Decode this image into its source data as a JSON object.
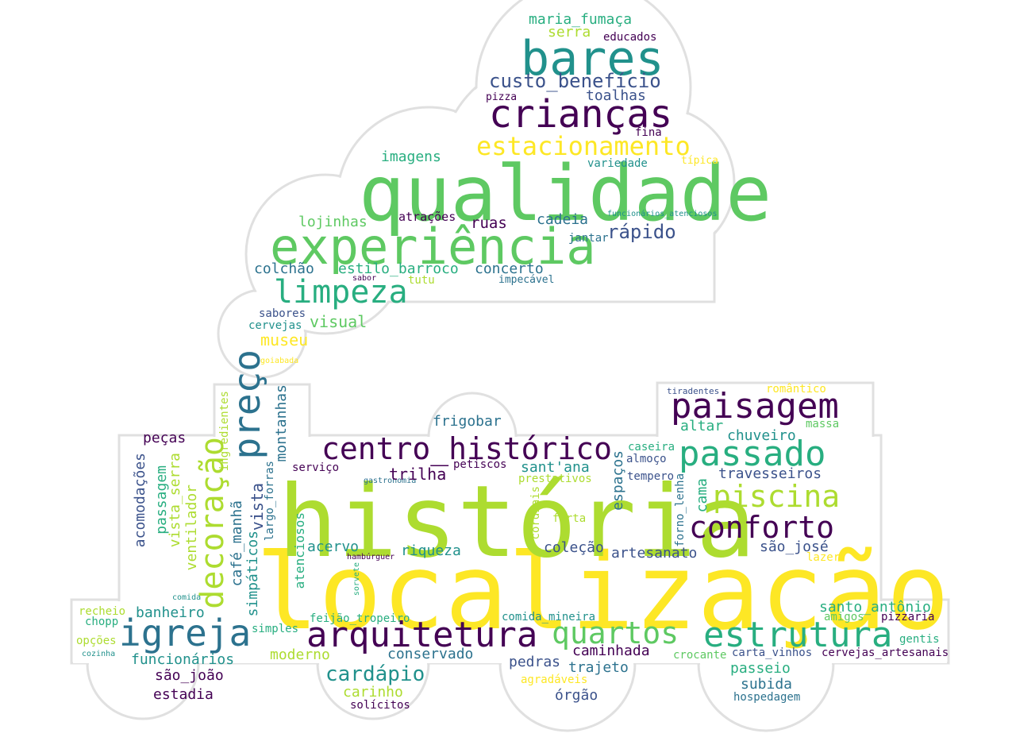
{
  "palette": {
    "c1": "#440154",
    "c2": "#3b528b",
    "c3": "#2c728e",
    "c4": "#21918c",
    "c5": "#28ae80",
    "c6": "#5ec962",
    "c7": "#addc30",
    "c8": "#fde725",
    "outline": "#e0e0e0"
  },
  "words": [
    "localização",
    "história",
    "qualidade",
    "bares",
    "experiência",
    "arquitetura",
    "igreja",
    "estrutura",
    "crianças",
    "paisagem",
    "passado",
    "centro_histórico",
    "preço",
    "decoração",
    "limpeza",
    "piscina",
    "conforto",
    "quartos",
    "estacionamento",
    "custo_benefício",
    "cardápio",
    "rápido",
    "maria_fumaça",
    "serra",
    "educados",
    "toalhas",
    "pizza",
    "fina",
    "típica",
    "variedade",
    "imagens",
    "lojinhas",
    "atrações",
    "ruas",
    "cadeia",
    "funcionários_atenciosos",
    "jantar",
    "colchão",
    "estilo_barroco",
    "concerto",
    "sabor",
    "tutu",
    "impecável",
    "sabores",
    "cervejas",
    "visual",
    "museu",
    "goiabada",
    "ingredientes",
    "montanhas",
    "frigobar",
    "tiradentes",
    "romântico",
    "massa",
    "altar",
    "chuveiro",
    "caseira",
    "almoço",
    "tempero",
    "travesseiros",
    "peças",
    "acomodações",
    "passagem",
    "vista_serra",
    "ventilador",
    "café_manhã",
    "vista",
    "simpáticos",
    "largo_forras",
    "serviço",
    "petiscos",
    "gastronomia",
    "sant'ana",
    "trilha",
    "prestativos",
    "espaços",
    "cordiais",
    "farta",
    "cama",
    "forno_lenha",
    "acervo",
    "riqueza",
    "coleção",
    "artesanato",
    "são_josé",
    "lazer",
    "hambúrguer",
    "sorvete",
    "atenciosos",
    "comida",
    "santo_antônio",
    "recheio",
    "chopp",
    "banheiro",
    "feijão_tropeiro",
    "comida_mineira",
    "amigos",
    "pizzaria",
    "opções",
    "simples",
    "gentis",
    "moderno",
    "conservado",
    "caminhada",
    "crocante",
    "carta_vinhos",
    "cervejas_artesanais",
    "cozinha",
    "funcionários",
    "pedras",
    "trajeto",
    "passeio",
    "são_joão",
    "subida",
    "estadia",
    "órgão",
    "carinho",
    "agradáveis",
    "hospedagem",
    "solícitos"
  ]
}
